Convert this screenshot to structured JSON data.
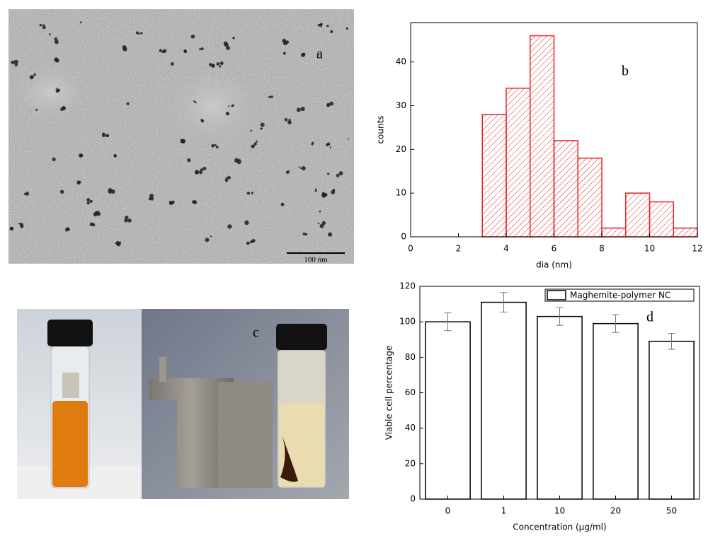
{
  "panels": {
    "a": {
      "label": "a",
      "scale_bar": "100 nm"
    },
    "c": {
      "label": "c"
    }
  },
  "chart_data": [
    {
      "type": "histogram",
      "annotation": "b",
      "xlabel": "dia (nm)",
      "ylabel": "counts",
      "bins": [
        3,
        4,
        5,
        6,
        7,
        8,
        9,
        10,
        11,
        12
      ],
      "counts": [
        28,
        34,
        46,
        22,
        18,
        2,
        10,
        8,
        2
      ],
      "color": "#e8232a",
      "xlim": [
        0,
        12
      ],
      "xticks": [
        0,
        2,
        4,
        6,
        8,
        10,
        12
      ],
      "ylim": [
        0,
        49
      ],
      "yticks": [
        0,
        10,
        20,
        30,
        40
      ]
    },
    {
      "type": "bar",
      "annotation": "d",
      "xlabel": "Concentration (μg/ml)",
      "ylabel": "Viable cell percentage",
      "categories": [
        "0",
        "1",
        "10",
        "20",
        "50"
      ],
      "series": [
        {
          "name": "Maghemite-polymer NC",
          "color": "#000000",
          "values": [
            100,
            111,
            103,
            99,
            89
          ],
          "errors": [
            5,
            5.5,
            5,
            5,
            4.5
          ]
        }
      ],
      "ylim": [
        0,
        120
      ],
      "yticks": [
        0,
        20,
        40,
        60,
        80,
        100,
        120
      ],
      "legend": "upper right"
    }
  ]
}
